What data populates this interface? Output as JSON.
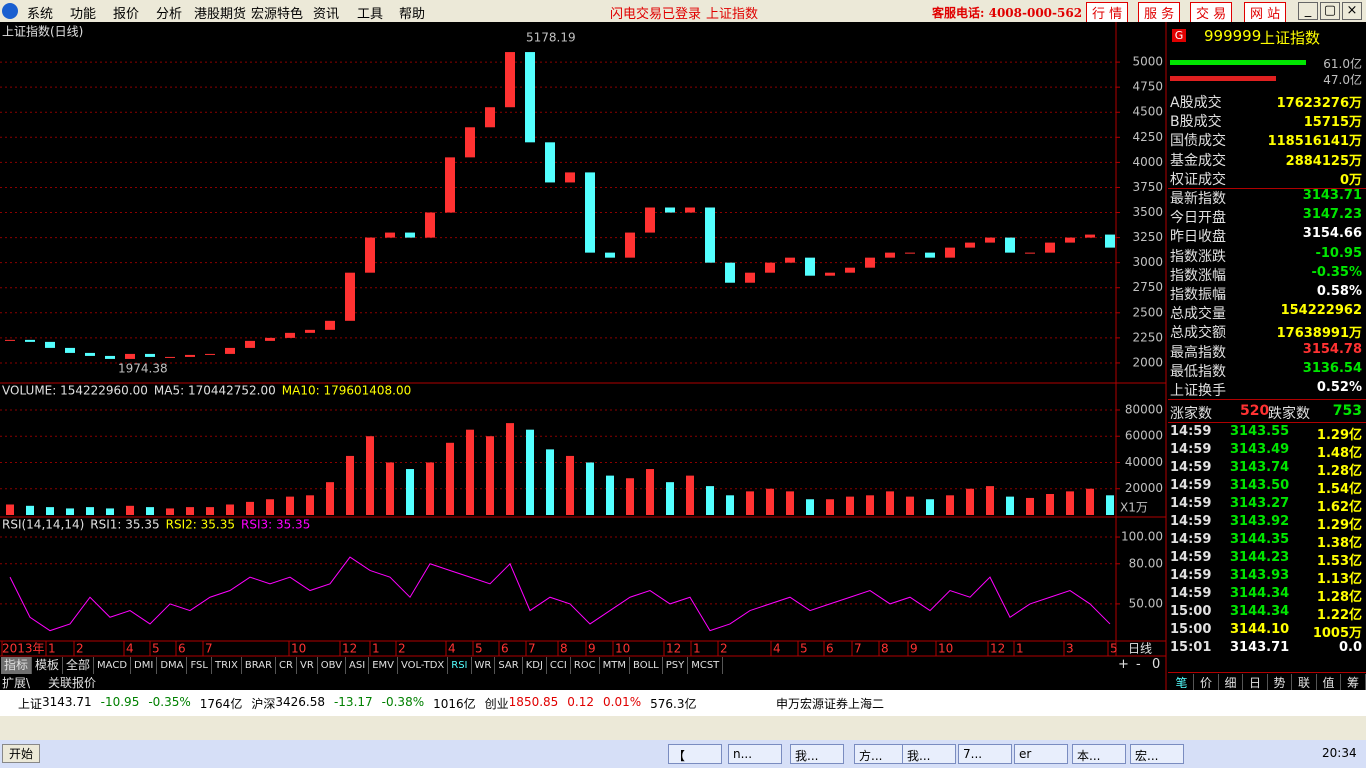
{
  "menu": [
    "系统",
    "功能",
    "报价",
    "分析",
    "港股期货",
    "宏源特色",
    "资讯",
    "工具",
    "帮助"
  ],
  "notices": [
    "闪电交易已登录",
    "上证指数"
  ],
  "hotline": "客服电话: 4008-000-562",
  "top_buttons": [
    "行 情",
    "服 务",
    "交 易",
    "网 站"
  ],
  "chart_data": [
    {
      "type": "candlestick",
      "title": "上证指数(日线)",
      "up_color": "#ff3232",
      "down_color": "#54ffff",
      "values": [
        2230,
        2210,
        2150,
        2100,
        2070,
        2040,
        2090,
        2060,
        2060,
        2080,
        2090,
        2150,
        2220,
        2250,
        2300,
        2330,
        2420,
        2900,
        3250,
        3300,
        3250,
        3500,
        4050,
        4350,
        4550,
        5100,
        4200,
        3800,
        3900,
        3100,
        3050,
        3300,
        3550,
        3500,
        3550,
        3000,
        2800,
        2900,
        3000,
        3050,
        2870,
        2900,
        2950,
        3050,
        3100,
        3100,
        3050,
        3150,
        3200,
        3250,
        3100,
        3100,
        3200,
        3250,
        3280,
        3150
      ],
      "annotations": [
        "5178.19",
        "1974.38"
      ],
      "ylim": [
        1800,
        5360
      ],
      "yticks": [
        2000,
        2250,
        2500,
        2750,
        3000,
        3250,
        3500,
        3750,
        4000,
        4250,
        4500,
        4750,
        5000
      ],
      "grid": true
    },
    {
      "type": "bar",
      "legend": [
        "VOLUME: 154222960.00",
        "MA5: 170442752.00",
        "MA10: 179601408.00"
      ],
      "legend_colors": [
        "#e0e0e0",
        "#e0e0e0",
        "#ffff00"
      ],
      "unit_label": "X1万",
      "values": [
        8000,
        7000,
        6000,
        5000,
        6000,
        5000,
        7000,
        6000,
        5000,
        6000,
        6000,
        8000,
        10000,
        12000,
        14000,
        15000,
        25000,
        45000,
        60000,
        40000,
        35000,
        40000,
        55000,
        65000,
        60000,
        70000,
        65000,
        50000,
        45000,
        40000,
        30000,
        28000,
        35000,
        25000,
        30000,
        22000,
        15000,
        18000,
        20000,
        18000,
        12000,
        12000,
        14000,
        15000,
        18000,
        14000,
        12000,
        15000,
        20000,
        22000,
        14000,
        13000,
        16000,
        18000,
        20000,
        15000
      ],
      "ylim": [
        0,
        87600
      ],
      "yticks": [
        20000,
        40000,
        60000,
        80000
      ],
      "grid": true
    },
    {
      "type": "line",
      "legend": [
        "RSI(14,14,14)",
        "RSI1: 35.35",
        "RSI2: 35.35",
        "RSI3: 35.35"
      ],
      "legend_colors": [
        "#e0e0e0",
        "#e0e0e0",
        "#ffff00",
        "#ff00ff"
      ],
      "color": "#ff00ff",
      "values": [
        70,
        40,
        30,
        35,
        55,
        40,
        45,
        35,
        50,
        45,
        55,
        60,
        70,
        65,
        70,
        60,
        65,
        85,
        75,
        70,
        55,
        80,
        75,
        70,
        65,
        80,
        45,
        55,
        50,
        35,
        45,
        55,
        60,
        50,
        55,
        30,
        35,
        45,
        50,
        55,
        45,
        50,
        55,
        60,
        50,
        55,
        45,
        60,
        55,
        70,
        40,
        50,
        55,
        60,
        50,
        35
      ],
      "ylim": [
        23,
        112
      ],
      "yticks": [
        {
          "value": 50,
          "label": "50.00"
        },
        {
          "value": 80,
          "label": "80.00"
        },
        {
          "value": 100,
          "label": "100.00"
        }
      ],
      "grid": true
    }
  ],
  "time_axis": [
    "2013年",
    "1",
    "2",
    "4",
    "5",
    "6",
    "7",
    "10",
    "12",
    "1",
    "2",
    "4",
    "5",
    "6",
    "7",
    "8",
    "9",
    "10",
    "12",
    "1",
    "2",
    "4",
    "5",
    "6",
    "7",
    "8",
    "9",
    "10",
    "12",
    "1",
    "3",
    "5"
  ],
  "period": "日线",
  "indicator_tabs": [
    "指标",
    "模板",
    "全部",
    "MACD",
    "DMI",
    "DMA",
    "FSL",
    "TRIX",
    "BRAR",
    "CR",
    "VR",
    "OBV",
    "ASI",
    "EMV",
    "VOL-TDX",
    "RSI",
    "WR",
    "SAR",
    "KDJ",
    "CCI",
    "ROC",
    "MTM",
    "BOLL",
    "PSY",
    "MCST"
  ],
  "zoom_buttons": [
    "+",
    "-",
    "0"
  ],
  "extra_tabs": [
    "扩展\\",
    "关联报价"
  ],
  "panel": {
    "badge": "G",
    "code": "999999",
    "name": "上证指数",
    "bar_labels": [
      "61.0亿",
      "47.0亿"
    ],
    "rows": [
      {
        "label": "A股成交",
        "value": "17623276万",
        "color": "#ffff00"
      },
      {
        "label": "B股成交",
        "value": "15715万",
        "color": "#ffff00"
      },
      {
        "label": "国债成交",
        "value": "118516141万",
        "color": "#ffff00"
      },
      {
        "label": "基金成交",
        "value": "2884125万",
        "color": "#ffff00"
      },
      {
        "label": "权证成交",
        "value": "0万",
        "color": "#ffff00"
      },
      {
        "label": "最新指数",
        "value": "3143.71",
        "color": "#00e600"
      },
      {
        "label": "今日开盘",
        "value": "3147.23",
        "color": "#00e600"
      },
      {
        "label": "昨日收盘",
        "value": "3154.66",
        "color": "#ffffff"
      },
      {
        "label": "指数涨跌",
        "value": "-10.95",
        "color": "#00e600"
      },
      {
        "label": "指数涨幅",
        "value": "-0.35%",
        "color": "#00e600"
      },
      {
        "label": "指数振幅",
        "value": "0.58%",
        "color": "#ffffff"
      },
      {
        "label": "总成交量",
        "value": "154222962",
        "color": "#ffff00"
      },
      {
        "label": "总成交额",
        "value": "17638991万",
        "color": "#ffff00"
      },
      {
        "label": "最高指数",
        "value": "3154.78",
        "color": "#ff3232"
      },
      {
        "label": "最低指数",
        "value": "3136.54",
        "color": "#00e600"
      },
      {
        "label": "上证换手",
        "value": "0.52%",
        "color": "#ffffff"
      }
    ],
    "advance_label": "涨家数",
    "advance": "520",
    "decline_label": "跌家数",
    "decline": "753",
    "ticks": [
      [
        "14:59",
        "3143.55",
        "1.29亿"
      ],
      [
        "14:59",
        "3143.49",
        "1.48亿"
      ],
      [
        "14:59",
        "3143.74",
        "1.28亿"
      ],
      [
        "14:59",
        "3143.50",
        "1.54亿"
      ],
      [
        "14:59",
        "3143.27",
        "1.62亿"
      ],
      [
        "14:59",
        "3143.92",
        "1.29亿"
      ],
      [
        "14:59",
        "3144.35",
        "1.38亿"
      ],
      [
        "14:59",
        "3144.23",
        "1.53亿"
      ],
      [
        "14:59",
        "3143.93",
        "1.13亿"
      ],
      [
        "14:59",
        "3144.34",
        "1.28亿"
      ],
      [
        "15:00",
        "3144.34",
        "1.22亿"
      ],
      [
        "15:00",
        "3144.10",
        "1005万"
      ],
      [
        "15:01",
        "3143.71",
        "0.0"
      ]
    ],
    "tick_price_colors": [
      "#00e600",
      "#00e600",
      "#00e600",
      "#00e600",
      "#00e600",
      "#00e600",
      "#00e600",
      "#00e600",
      "#00e600",
      "#00e600",
      "#00e600",
      "#ffff00",
      "#ffffff"
    ],
    "tabs": [
      "笔",
      "价",
      "细",
      "日",
      "势",
      "联",
      "值",
      "筹"
    ]
  },
  "status_bar": [
    "上证",
    "3143.71",
    "-10.95",
    "-0.35%",
    "1764亿",
    "沪深",
    "3426.58",
    "-13.17",
    "-0.38%",
    "1016亿",
    "创业",
    "1850.85",
    "0.12",
    "0.01%",
    "576.3亿"
  ],
  "broker": "申万宏源证券上海二",
  "taskbar": {
    "start": "开始",
    "items": [
      "【",
      "n...",
      "我...",
      "方...",
      "我...",
      "7...",
      "er",
      "本...",
      "宏..."
    ],
    "clock": "20:34"
  }
}
